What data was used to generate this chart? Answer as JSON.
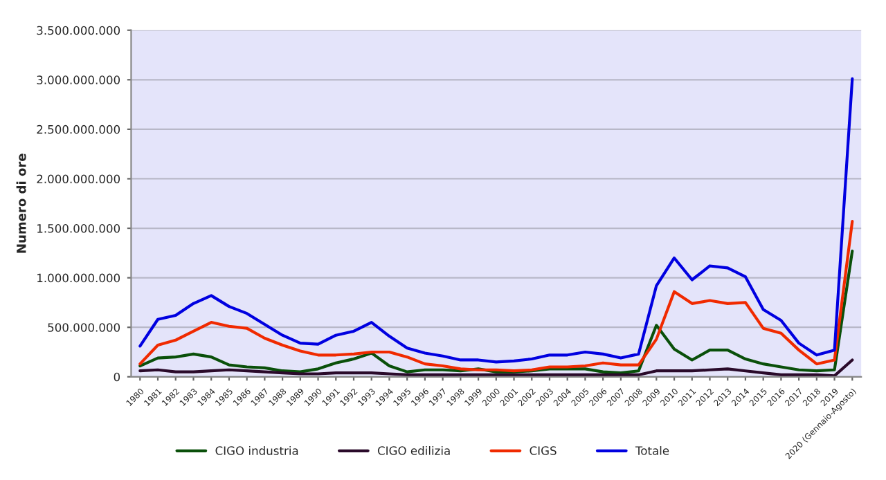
{
  "chart_data": {
    "type": "line",
    "ylabel": "Numero di ore",
    "categories": [
      "1980",
      "1981",
      "1982",
      "1983",
      "1984",
      "1985",
      "1986",
      "1987",
      "1988",
      "1989",
      "1990",
      "1991",
      "1992",
      "1993",
      "1994",
      "1995",
      "1996",
      "1997",
      "1998",
      "1999",
      "2000",
      "2001",
      "2002",
      "2003",
      "2004",
      "2005",
      "2006",
      "2007",
      "2008",
      "2009",
      "2010",
      "2011",
      "2012",
      "2013",
      "2014",
      "2015",
      "2016",
      "2017",
      "2018",
      "2019",
      "2020 (Gennaio-Agosto)"
    ],
    "series": [
      {
        "name": "CIGO industria",
        "color": "#0a500a",
        "values": [
          110000000,
          190000000,
          200000000,
          230000000,
          200000000,
          120000000,
          100000000,
          90000000,
          60000000,
          50000000,
          80000000,
          140000000,
          180000000,
          240000000,
          110000000,
          50000000,
          70000000,
          70000000,
          60000000,
          80000000,
          50000000,
          50000000,
          60000000,
          80000000,
          80000000,
          80000000,
          50000000,
          40000000,
          60000000,
          520000000,
          280000000,
          170000000,
          270000000,
          270000000,
          180000000,
          130000000,
          100000000,
          70000000,
          60000000,
          70000000,
          1270000000
        ]
      },
      {
        "name": "CIGO edilizia",
        "color": "#2a0a2a",
        "values": [
          60000000,
          70000000,
          50000000,
          50000000,
          60000000,
          70000000,
          60000000,
          50000000,
          40000000,
          30000000,
          30000000,
          40000000,
          40000000,
          40000000,
          30000000,
          20000000,
          20000000,
          20000000,
          20000000,
          20000000,
          20000000,
          20000000,
          20000000,
          20000000,
          20000000,
          20000000,
          20000000,
          20000000,
          20000000,
          60000000,
          60000000,
          60000000,
          70000000,
          80000000,
          60000000,
          40000000,
          20000000,
          20000000,
          20000000,
          10000000,
          170000000
        ]
      },
      {
        "name": "CIGS",
        "color": "#f02a00",
        "values": [
          130000000,
          320000000,
          370000000,
          460000000,
          550000000,
          510000000,
          490000000,
          390000000,
          320000000,
          260000000,
          220000000,
          220000000,
          230000000,
          250000000,
          250000000,
          200000000,
          130000000,
          110000000,
          80000000,
          70000000,
          70000000,
          60000000,
          70000000,
          100000000,
          100000000,
          110000000,
          140000000,
          120000000,
          120000000,
          380000000,
          860000000,
          740000000,
          770000000,
          740000000,
          750000000,
          490000000,
          440000000,
          270000000,
          130000000,
          170000000,
          1570000000
        ]
      },
      {
        "name": "Totale",
        "color": "#0000e0",
        "values": [
          310000000,
          580000000,
          620000000,
          740000000,
          820000000,
          710000000,
          640000000,
          530000000,
          420000000,
          340000000,
          330000000,
          420000000,
          460000000,
          550000000,
          410000000,
          290000000,
          240000000,
          210000000,
          170000000,
          170000000,
          150000000,
          160000000,
          180000000,
          220000000,
          220000000,
          250000000,
          230000000,
          190000000,
          230000000,
          920000000,
          1200000000,
          980000000,
          1120000000,
          1100000000,
          1010000000,
          680000000,
          570000000,
          340000000,
          220000000,
          270000000,
          3010000000
        ]
      }
    ],
    "ylim": [
      0,
      3500000000
    ],
    "yticks": [
      0,
      {
        "value": 500000000,
        "label": "500.000.000"
      },
      {
        "value": 1000000000,
        "label": "1.000.000.000"
      },
      {
        "value": 1500000000,
        "label": "1.500.000.000"
      },
      {
        "value": 2000000000,
        "label": "2.000.000.000"
      },
      {
        "value": 2500000000,
        "label": "2.500.000.000"
      },
      {
        "value": 3000000000,
        "label": "3.000.000.000"
      },
      {
        "value": 3500000000,
        "label": "3.500.000.000"
      }
    ],
    "grid": "y",
    "legend": "bottom",
    "marker": "none",
    "line_style": "solid"
  }
}
